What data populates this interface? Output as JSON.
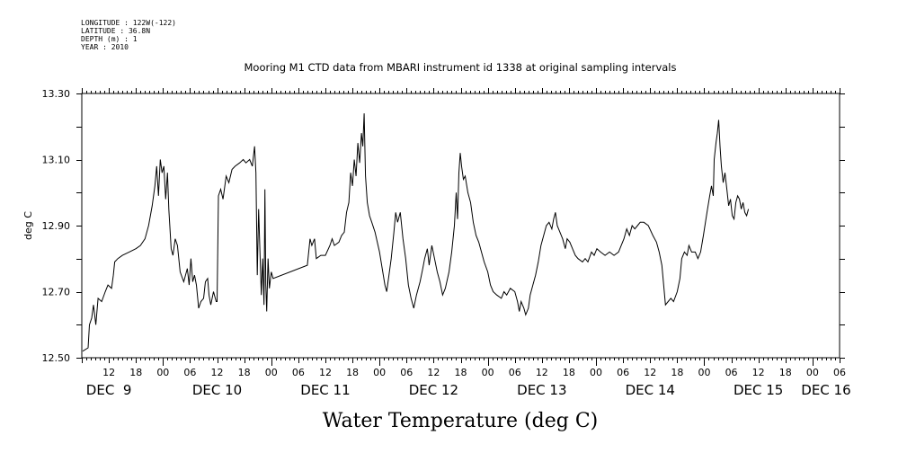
{
  "meta_lines": [
    "LONGITUDE : 122W(-122)",
    "LATITUDE : 36.8N",
    "DEPTH (m) : 1",
    "YEAR : 2010"
  ],
  "chart_data": {
    "type": "line",
    "title": "Mooring M1 CTD data from MBARI instrument id 1338 at original sampling intervals",
    "xlabel": "Water Temperature (deg C)",
    "ylabel": "deg C",
    "ylim": [
      12.5,
      13.3
    ],
    "yticks": [
      "12.50",
      "12.70",
      "12.90",
      "13.10",
      "13.30"
    ],
    "xlim_hours": [
      6,
      174
    ],
    "x_unit": "hours after DEC 8 2010 00:00",
    "hour_tick_labels": [
      {
        "h": 12,
        "label": "12"
      },
      {
        "h": 18,
        "label": "18"
      },
      {
        "h": 24,
        "label": "00"
      },
      {
        "h": 30,
        "label": "06"
      },
      {
        "h": 36,
        "label": "12"
      },
      {
        "h": 42,
        "label": "18"
      },
      {
        "h": 48,
        "label": "00"
      },
      {
        "h": 54,
        "label": "06"
      },
      {
        "h": 60,
        "label": "12"
      },
      {
        "h": 66,
        "label": "18"
      },
      {
        "h": 72,
        "label": "00"
      },
      {
        "h": 78,
        "label": "06"
      },
      {
        "h": 84,
        "label": "12"
      },
      {
        "h": 90,
        "label": "18"
      },
      {
        "h": 96,
        "label": "00"
      },
      {
        "h": 102,
        "label": "06"
      },
      {
        "h": 108,
        "label": "12"
      },
      {
        "h": 114,
        "label": "18"
      },
      {
        "h": 120,
        "label": "00"
      },
      {
        "h": 126,
        "label": "06"
      },
      {
        "h": 132,
        "label": "12"
      },
      {
        "h": 138,
        "label": "18"
      },
      {
        "h": 144,
        "label": "00"
      },
      {
        "h": 150,
        "label": "06"
      },
      {
        "h": 156,
        "label": "12"
      },
      {
        "h": 162,
        "label": "18"
      },
      {
        "h": 168,
        "label": "00"
      },
      {
        "h": 174,
        "label": "06"
      }
    ],
    "day_labels": [
      {
        "h": 12,
        "label": "DEC  9"
      },
      {
        "h": 36,
        "label": "DEC 10"
      },
      {
        "h": 60,
        "label": "DEC 11"
      },
      {
        "h": 84,
        "label": "DEC 12"
      },
      {
        "h": 108,
        "label": "DEC 13"
      },
      {
        "h": 132,
        "label": "DEC 14"
      },
      {
        "h": 156,
        "label": "DEC 15"
      },
      {
        "h": 171,
        "label": "DEC 16"
      }
    ],
    "series": [
      {
        "points": [
          [
            6.2,
            12.52
          ],
          [
            7.4,
            12.53
          ],
          [
            7.7,
            12.6
          ],
          [
            8.2,
            12.62
          ],
          [
            8.6,
            12.66
          ],
          [
            9.1,
            12.6
          ],
          [
            9.6,
            12.68
          ],
          [
            10.4,
            12.67
          ],
          [
            11.2,
            12.7
          ],
          [
            11.8,
            12.72
          ],
          [
            12.6,
            12.71
          ],
          [
            13.0,
            12.75
          ],
          [
            13.3,
            12.79
          ],
          [
            14.0,
            12.8
          ],
          [
            15.0,
            12.81
          ],
          [
            16.5,
            12.82
          ],
          [
            18.0,
            12.83
          ],
          [
            19.0,
            12.84
          ],
          [
            20.0,
            12.86
          ],
          [
            20.8,
            12.9
          ],
          [
            21.6,
            12.96
          ],
          [
            22.2,
            13.02
          ],
          [
            22.6,
            13.08
          ],
          [
            23.0,
            12.99
          ],
          [
            23.4,
            13.1
          ],
          [
            23.8,
            13.06
          ],
          [
            24.2,
            13.08
          ],
          [
            24.6,
            12.98
          ],
          [
            25.0,
            13.06
          ],
          [
            25.3,
            12.95
          ],
          [
            25.8,
            12.83
          ],
          [
            26.2,
            12.81
          ],
          [
            26.7,
            12.86
          ],
          [
            27.2,
            12.84
          ],
          [
            27.8,
            12.76
          ],
          [
            28.6,
            12.73
          ],
          [
            29.4,
            12.77
          ],
          [
            29.8,
            12.72
          ],
          [
            30.2,
            12.8
          ],
          [
            30.6,
            12.73
          ],
          [
            31.0,
            12.75
          ],
          [
            31.4,
            12.72
          ],
          [
            31.9,
            12.65
          ],
          [
            32.4,
            12.67
          ],
          [
            33.0,
            12.68
          ],
          [
            33.4,
            12.73
          ],
          [
            33.9,
            12.74
          ],
          [
            34.2,
            12.69
          ],
          [
            34.6,
            12.66
          ],
          [
            35.2,
            12.7
          ],
          [
            35.8,
            12.67
          ],
          [
            36.0,
            12.67
          ],
          [
            36.3,
            12.99
          ],
          [
            36.8,
            13.01
          ],
          [
            37.3,
            12.98
          ],
          [
            38.0,
            13.05
          ],
          [
            38.6,
            13.03
          ],
          [
            39.3,
            13.07
          ],
          [
            40.0,
            13.08
          ],
          [
            41.0,
            13.09
          ],
          [
            41.8,
            13.1
          ],
          [
            42.4,
            13.09
          ],
          [
            43.2,
            13.1
          ],
          [
            43.8,
            13.08
          ],
          [
            44.3,
            13.14
          ],
          [
            44.6,
            13.06
          ],
          [
            44.9,
            12.75
          ],
          [
            45.2,
            12.95
          ],
          [
            45.5,
            12.82
          ],
          [
            45.8,
            12.69
          ],
          [
            46.1,
            12.8
          ],
          [
            46.4,
            12.66
          ],
          [
            46.6,
            13.01
          ],
          [
            46.8,
            12.72
          ],
          [
            47.0,
            12.64
          ],
          [
            47.3,
            12.8
          ],
          [
            47.6,
            12.71
          ],
          [
            48.0,
            12.76
          ],
          [
            48.4,
            12.74
          ],
          [
            56.0,
            12.78
          ],
          [
            56.3,
            12.82
          ],
          [
            56.6,
            12.86
          ],
          [
            57.0,
            12.84
          ],
          [
            57.6,
            12.86
          ],
          [
            58.0,
            12.8
          ],
          [
            59.0,
            12.81
          ],
          [
            60.0,
            12.81
          ],
          [
            61.0,
            12.84
          ],
          [
            61.5,
            12.86
          ],
          [
            62.0,
            12.84
          ],
          [
            63.0,
            12.85
          ],
          [
            63.6,
            12.87
          ],
          [
            64.2,
            12.88
          ],
          [
            64.7,
            12.94
          ],
          [
            65.2,
            12.97
          ],
          [
            65.6,
            13.06
          ],
          [
            66.0,
            13.02
          ],
          [
            66.4,
            13.1
          ],
          [
            66.8,
            13.05
          ],
          [
            67.2,
            13.15
          ],
          [
            67.6,
            13.09
          ],
          [
            68.0,
            13.18
          ],
          [
            68.3,
            13.14
          ],
          [
            68.6,
            13.24
          ],
          [
            68.9,
            13.05
          ],
          [
            69.3,
            12.97
          ],
          [
            69.8,
            12.93
          ],
          [
            70.3,
            12.91
          ],
          [
            71.0,
            12.88
          ],
          [
            72.0,
            12.82
          ],
          [
            72.6,
            12.77
          ],
          [
            73.2,
            12.72
          ],
          [
            73.6,
            12.7
          ],
          [
            74.0,
            12.74
          ],
          [
            74.6,
            12.8
          ],
          [
            75.2,
            12.88
          ],
          [
            75.6,
            12.94
          ],
          [
            76.0,
            12.91
          ],
          [
            76.6,
            12.94
          ],
          [
            77.2,
            12.86
          ],
          [
            77.8,
            12.8
          ],
          [
            78.4,
            12.72
          ],
          [
            79.0,
            12.68
          ],
          [
            79.6,
            12.65
          ],
          [
            80.2,
            12.69
          ],
          [
            81.0,
            12.73
          ],
          [
            81.6,
            12.77
          ],
          [
            82.0,
            12.8
          ],
          [
            82.6,
            12.83
          ],
          [
            83.0,
            12.78
          ],
          [
            83.6,
            12.84
          ],
          [
            84.2,
            12.8
          ],
          [
            84.8,
            12.76
          ],
          [
            85.4,
            12.73
          ],
          [
            86.0,
            12.69
          ],
          [
            86.6,
            12.71
          ],
          [
            87.4,
            12.76
          ],
          [
            88.0,
            12.82
          ],
          [
            88.6,
            12.9
          ],
          [
            89.0,
            13.0
          ],
          [
            89.3,
            12.92
          ],
          [
            89.6,
            13.06
          ],
          [
            89.9,
            13.12
          ],
          [
            90.2,
            13.08
          ],
          [
            90.6,
            13.04
          ],
          [
            91.0,
            13.05
          ],
          [
            91.6,
            13.0
          ],
          [
            92.2,
            12.97
          ],
          [
            92.8,
            12.91
          ],
          [
            93.4,
            12.87
          ],
          [
            94.0,
            12.85
          ],
          [
            94.6,
            12.82
          ],
          [
            95.2,
            12.79
          ],
          [
            96.0,
            12.76
          ],
          [
            96.6,
            12.72
          ],
          [
            97.2,
            12.7
          ],
          [
            98.0,
            12.69
          ],
          [
            99.0,
            12.68
          ],
          [
            99.6,
            12.7
          ],
          [
            100.2,
            12.69
          ],
          [
            101.0,
            12.71
          ],
          [
            102.0,
            12.7
          ],
          [
            102.6,
            12.67
          ],
          [
            103.0,
            12.64
          ],
          [
            103.4,
            12.67
          ],
          [
            104.0,
            12.65
          ],
          [
            104.4,
            12.63
          ],
          [
            105.0,
            12.65
          ],
          [
            105.4,
            12.69
          ],
          [
            106.0,
            12.72
          ],
          [
            106.6,
            12.75
          ],
          [
            107.2,
            12.79
          ],
          [
            107.8,
            12.84
          ],
          [
            108.4,
            12.87
          ],
          [
            109.0,
            12.9
          ],
          [
            109.6,
            12.91
          ],
          [
            110.2,
            12.89
          ],
          [
            110.6,
            12.92
          ],
          [
            111.0,
            12.94
          ],
          [
            111.4,
            12.9
          ],
          [
            112.0,
            12.88
          ],
          [
            112.6,
            12.86
          ],
          [
            113.2,
            12.83
          ],
          [
            113.6,
            12.86
          ],
          [
            114.2,
            12.85
          ],
          [
            114.8,
            12.83
          ],
          [
            115.4,
            12.81
          ],
          [
            116.0,
            12.8
          ],
          [
            117.0,
            12.79
          ],
          [
            117.6,
            12.8
          ],
          [
            118.2,
            12.79
          ],
          [
            119.0,
            12.82
          ],
          [
            119.6,
            12.81
          ],
          [
            120.2,
            12.83
          ],
          [
            121.0,
            12.82
          ],
          [
            122.0,
            12.81
          ],
          [
            123.0,
            12.82
          ],
          [
            124.0,
            12.81
          ],
          [
            125.0,
            12.82
          ],
          [
            125.6,
            12.84
          ],
          [
            126.2,
            12.86
          ],
          [
            126.8,
            12.89
          ],
          [
            127.4,
            12.87
          ],
          [
            128.0,
            12.9
          ],
          [
            128.6,
            12.89
          ],
          [
            129.2,
            12.9
          ],
          [
            129.8,
            12.91
          ],
          [
            130.6,
            12.91
          ],
          [
            131.6,
            12.9
          ],
          [
            132.6,
            12.87
          ],
          [
            133.4,
            12.85
          ],
          [
            134.0,
            12.82
          ],
          [
            134.6,
            12.78
          ],
          [
            135.0,
            12.72
          ],
          [
            135.4,
            12.66
          ],
          [
            136.0,
            12.67
          ],
          [
            136.6,
            12.68
          ],
          [
            137.2,
            12.67
          ],
          [
            138.0,
            12.7
          ],
          [
            138.6,
            12.74
          ],
          [
            139.0,
            12.8
          ],
          [
            139.6,
            12.82
          ],
          [
            140.2,
            12.81
          ],
          [
            140.6,
            12.84
          ],
          [
            141.2,
            12.82
          ],
          [
            142.0,
            12.82
          ],
          [
            142.6,
            12.8
          ],
          [
            143.2,
            12.82
          ],
          [
            143.8,
            12.87
          ],
          [
            144.6,
            12.94
          ],
          [
            145.2,
            12.99
          ],
          [
            145.6,
            13.02
          ],
          [
            146.0,
            12.99
          ],
          [
            146.2,
            13.1
          ],
          [
            146.6,
            13.15
          ],
          [
            146.9,
            13.18
          ],
          [
            147.2,
            13.22
          ],
          [
            147.5,
            13.14
          ],
          [
            147.8,
            13.08
          ],
          [
            148.2,
            13.03
          ],
          [
            148.6,
            13.06
          ],
          [
            149.0,
            13.01
          ],
          [
            149.4,
            12.96
          ],
          [
            149.8,
            12.98
          ],
          [
            150.2,
            12.93
          ],
          [
            150.6,
            12.92
          ],
          [
            151.0,
            12.97
          ],
          [
            151.4,
            12.99
          ],
          [
            151.8,
            12.98
          ],
          [
            152.2,
            12.95
          ],
          [
            152.6,
            12.97
          ],
          [
            153.0,
            12.94
          ],
          [
            153.4,
            12.93
          ],
          [
            153.8,
            12.95
          ]
        ]
      }
    ],
    "grid": false,
    "legend": "none",
    "line_color": "#000000"
  }
}
